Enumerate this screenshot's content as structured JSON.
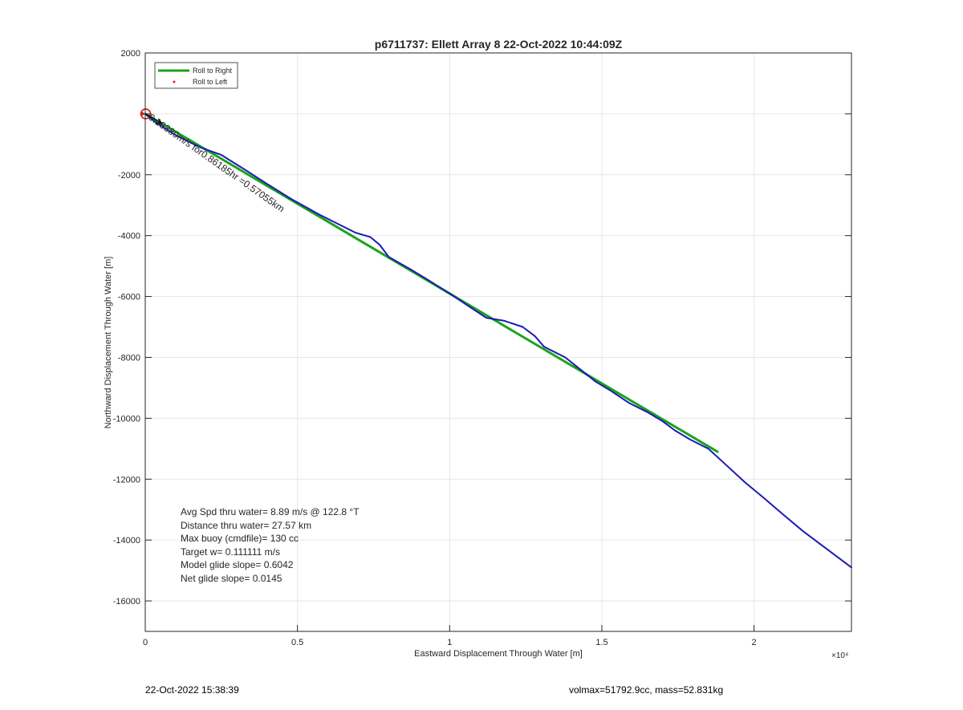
{
  "chart_data": {
    "type": "line",
    "title": "p6711737: Ellett Array 8 22-Oct-2022 10:44:09Z",
    "xlabel": "Eastward Displacement Through Water [m]",
    "ylabel": "Northward Displacement Through Water [m]",
    "x_exponent_label": "×10⁴",
    "xlim": [
      0,
      23200
    ],
    "ylim": [
      -17000,
      2000
    ],
    "x_ticks": [
      0,
      5000,
      10000,
      15000,
      20000
    ],
    "x_tick_labels": [
      "0",
      "0.5",
      "1",
      "1.5",
      "2"
    ],
    "y_ticks": [
      2000,
      0,
      -2000,
      -4000,
      -6000,
      -8000,
      -10000,
      -12000,
      -14000,
      -16000
    ],
    "y_tick_labels": [
      "2000",
      "",
      "-2000",
      "-4000",
      "-6000",
      "-8000",
      "-10000",
      "-12000",
      "-14000",
      "-16000"
    ],
    "grid": true,
    "legend": {
      "placement": "top-left",
      "entries": [
        {
          "name": "Roll to Right",
          "color": "#1aa31a",
          "style": "line"
        },
        {
          "name": "Roll to Left",
          "color": "#e02020",
          "style": "dot"
        }
      ]
    },
    "series": [
      {
        "name": "Roll to Right",
        "color": "#1aa31a",
        "x": [
          0,
          18800
        ],
        "y": [
          0,
          -11100
        ]
      },
      {
        "color": "#1a1ab8",
        "x": [
          0,
          300,
          1000,
          1800,
          2500,
          3300,
          4000,
          4800,
          5700,
          6200,
          6900,
          7400,
          7700,
          8000,
          8700,
          9200,
          10000,
          10600,
          11200,
          11800,
          12400,
          12800,
          13100,
          13800,
          14300,
          14800,
          15300,
          15900,
          16500,
          17000,
          17400,
          17900,
          18500,
          19100,
          19700,
          20300,
          21000,
          21600,
          22200,
          22800,
          23200
        ],
        "y": [
          0,
          -250,
          -700,
          -1100,
          -1350,
          -1850,
          -2300,
          -2800,
          -3300,
          -3550,
          -3900,
          -4050,
          -4300,
          -4700,
          -5100,
          -5400,
          -5900,
          -6300,
          -6700,
          -6800,
          -7000,
          -7300,
          -7650,
          -8000,
          -8400,
          -8800,
          -9100,
          -9500,
          -9800,
          -10100,
          -10400,
          -10700,
          -11000,
          -11550,
          -12100,
          -12600,
          -13200,
          -13700,
          -14150,
          -14600,
          -14900
        ]
      }
    ],
    "annotations": {
      "path_label": "0.18389m/s for0.86185hr =0.57055km",
      "stats": [
        "Avg Spd thru water=  8.89 m/s @ 122.8 °T",
        "Distance thru water= 27.57 km",
        "Max buoy (cmdfile)= 130 cc",
        "Target w= 0.111111 m/s",
        "Model glide slope= 0.6042",
        "Net glide slope= 0.0145"
      ]
    }
  },
  "footer": {
    "date": "22-Oct-2022 15:38:39",
    "info": "volmax=51792.9cc, mass=52.831kg"
  }
}
